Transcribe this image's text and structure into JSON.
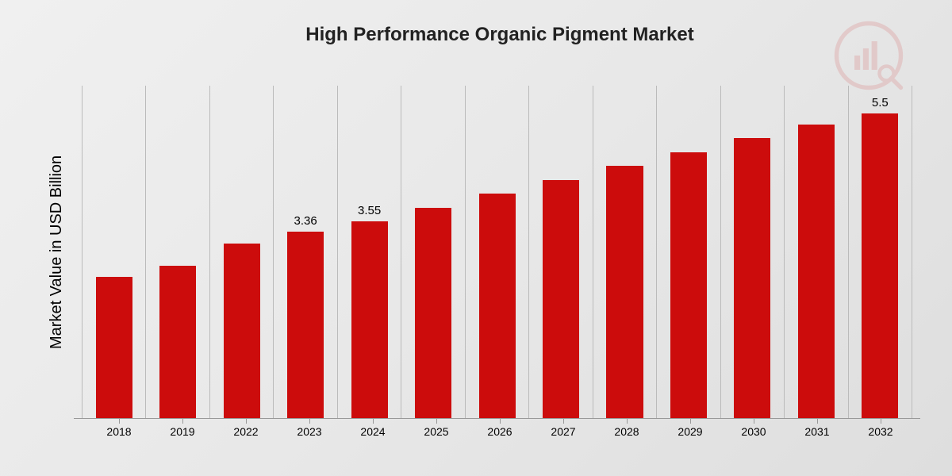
{
  "title": "High Performance Organic Pigment Market",
  "ylabel": "Market Value in USD Billion",
  "chart": {
    "type": "bar",
    "bar_color": "#cc0c0c",
    "gridline_color": "#bbbbbb",
    "axis_color": "#999999",
    "background": "linear-gradient(135deg,#f0f0f0,#dedede)",
    "title_fontsize": 24,
    "ylabel_fontsize": 20,
    "xtick_fontsize": 14,
    "bar_label_fontsize": 15,
    "bar_width_ratio": 0.58,
    "ymax": 6.0,
    "categories": [
      "2018",
      "2019",
      "2022",
      "2023",
      "2024",
      "2025",
      "2026",
      "2027",
      "2028",
      "2029",
      "2030",
      "2031",
      "2032"
    ],
    "values": [
      2.55,
      2.75,
      3.15,
      3.36,
      3.55,
      3.8,
      4.05,
      4.3,
      4.55,
      4.8,
      5.05,
      5.3,
      5.5
    ],
    "value_labels": [
      "",
      "",
      "",
      "3.36",
      "3.55",
      "",
      "",
      "",
      "",
      "",
      "",
      "",
      "5.5"
    ]
  },
  "watermark_color": "#cc0c0c"
}
